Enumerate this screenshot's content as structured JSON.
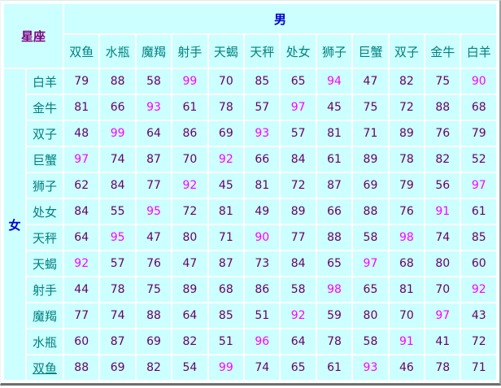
{
  "chart_data": {
    "type": "table",
    "corner_label": "星座",
    "col_axis_label": "男",
    "row_axis_label": "女",
    "columns": [
      "双鱼",
      "水瓶",
      "魔羯",
      "射手",
      "天蝎",
      "天秤",
      "处女",
      "狮子",
      "巨蟹",
      "双子",
      "金牛",
      "白羊"
    ],
    "rows": [
      {
        "label": "白羊",
        "values": [
          79,
          88,
          58,
          99,
          70,
          85,
          65,
          94,
          47,
          82,
          75,
          90
        ]
      },
      {
        "label": "金牛",
        "values": [
          81,
          66,
          93,
          61,
          78,
          57,
          97,
          45,
          75,
          72,
          88,
          68
        ]
      },
      {
        "label": "双子",
        "values": [
          48,
          99,
          64,
          86,
          69,
          93,
          57,
          81,
          71,
          89,
          76,
          79
        ]
      },
      {
        "label": "巨蟹",
        "values": [
          97,
          74,
          87,
          70,
          92,
          66,
          84,
          61,
          89,
          78,
          82,
          52
        ]
      },
      {
        "label": "狮子",
        "values": [
          62,
          84,
          77,
          92,
          45,
          81,
          72,
          87,
          69,
          79,
          56,
          97
        ]
      },
      {
        "label": "处女",
        "values": [
          84,
          55,
          95,
          72,
          81,
          49,
          89,
          66,
          88,
          76,
          91,
          61
        ]
      },
      {
        "label": "天秤",
        "values": [
          64,
          95,
          47,
          80,
          71,
          90,
          77,
          88,
          58,
          98,
          74,
          85
        ]
      },
      {
        "label": "天蝎",
        "values": [
          92,
          57,
          76,
          47,
          87,
          73,
          84,
          65,
          97,
          68,
          80,
          60
        ]
      },
      {
        "label": "射手",
        "values": [
          44,
          78,
          75,
          89,
          68,
          86,
          58,
          98,
          65,
          81,
          70,
          92
        ]
      },
      {
        "label": "魔羯",
        "values": [
          77,
          74,
          88,
          64,
          85,
          51,
          92,
          59,
          80,
          70,
          97,
          43
        ]
      },
      {
        "label": "水瓶",
        "values": [
          60,
          87,
          69,
          82,
          51,
          96,
          64,
          78,
          58,
          91,
          41,
          72
        ]
      },
      {
        "label": "双鱼",
        "values": [
          88,
          69,
          82,
          54,
          99,
          74,
          65,
          61,
          93,
          46,
          78,
          71
        ],
        "underlined": true
      }
    ],
    "highlight_rule": "values >= 90 rendered in magenta"
  },
  "colors": {
    "cell_bg": "#ccffff",
    "grid_gap": "#ffffff",
    "corner": "#800080",
    "gender": "#0000cc",
    "sign": "#008080",
    "num": "#660066",
    "hi": "#ff00ff",
    "high_threshold": 90
  }
}
